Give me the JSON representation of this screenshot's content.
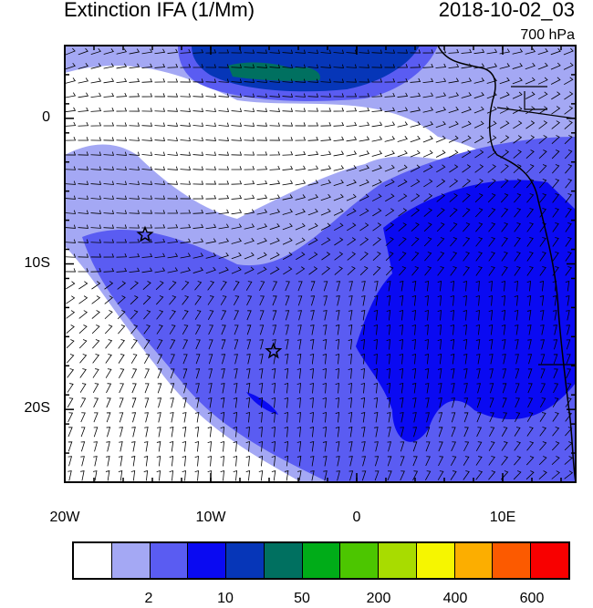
{
  "title_left": "Extinction IFA (1/Mm)",
  "title_right": "2018-10-02_03",
  "level": "700 hPa",
  "axes": {
    "x_ticks": [
      {
        "value": -20,
        "label": "20W"
      },
      {
        "value": -10,
        "label": "10W"
      },
      {
        "value": 0,
        "label": "0"
      },
      {
        "value": 10,
        "label": "10E"
      }
    ],
    "y_ticks": [
      {
        "value": 0,
        "label": "0"
      },
      {
        "value": -10,
        "label": "10S"
      },
      {
        "value": -20,
        "label": "20S"
      }
    ],
    "lon_range": [
      -20,
      15
    ],
    "lat_range": [
      -25,
      5
    ]
  },
  "markers": [
    {
      "name": "star-marker",
      "lon": -14.5,
      "lat": -8
    },
    {
      "name": "star-marker",
      "lon": -5.7,
      "lat": -16
    }
  ],
  "colorbar": {
    "colors": [
      "#ffffff",
      "#a4a8f4",
      "#5a5cf2",
      "#0a0af2",
      "#0636b8",
      "#007060",
      "#00ac18",
      "#4cc600",
      "#a8dc00",
      "#f6f600",
      "#fcae00",
      "#fc5a00",
      "#f80000"
    ],
    "labels": [
      {
        "index": 1,
        "label": "2"
      },
      {
        "index": 3,
        "label": "10"
      },
      {
        "index": 5,
        "label": "50"
      },
      {
        "index": 7,
        "label": "200"
      },
      {
        "index": 9,
        "label": "400"
      },
      {
        "index": 11,
        "label": "600"
      }
    ]
  }
}
